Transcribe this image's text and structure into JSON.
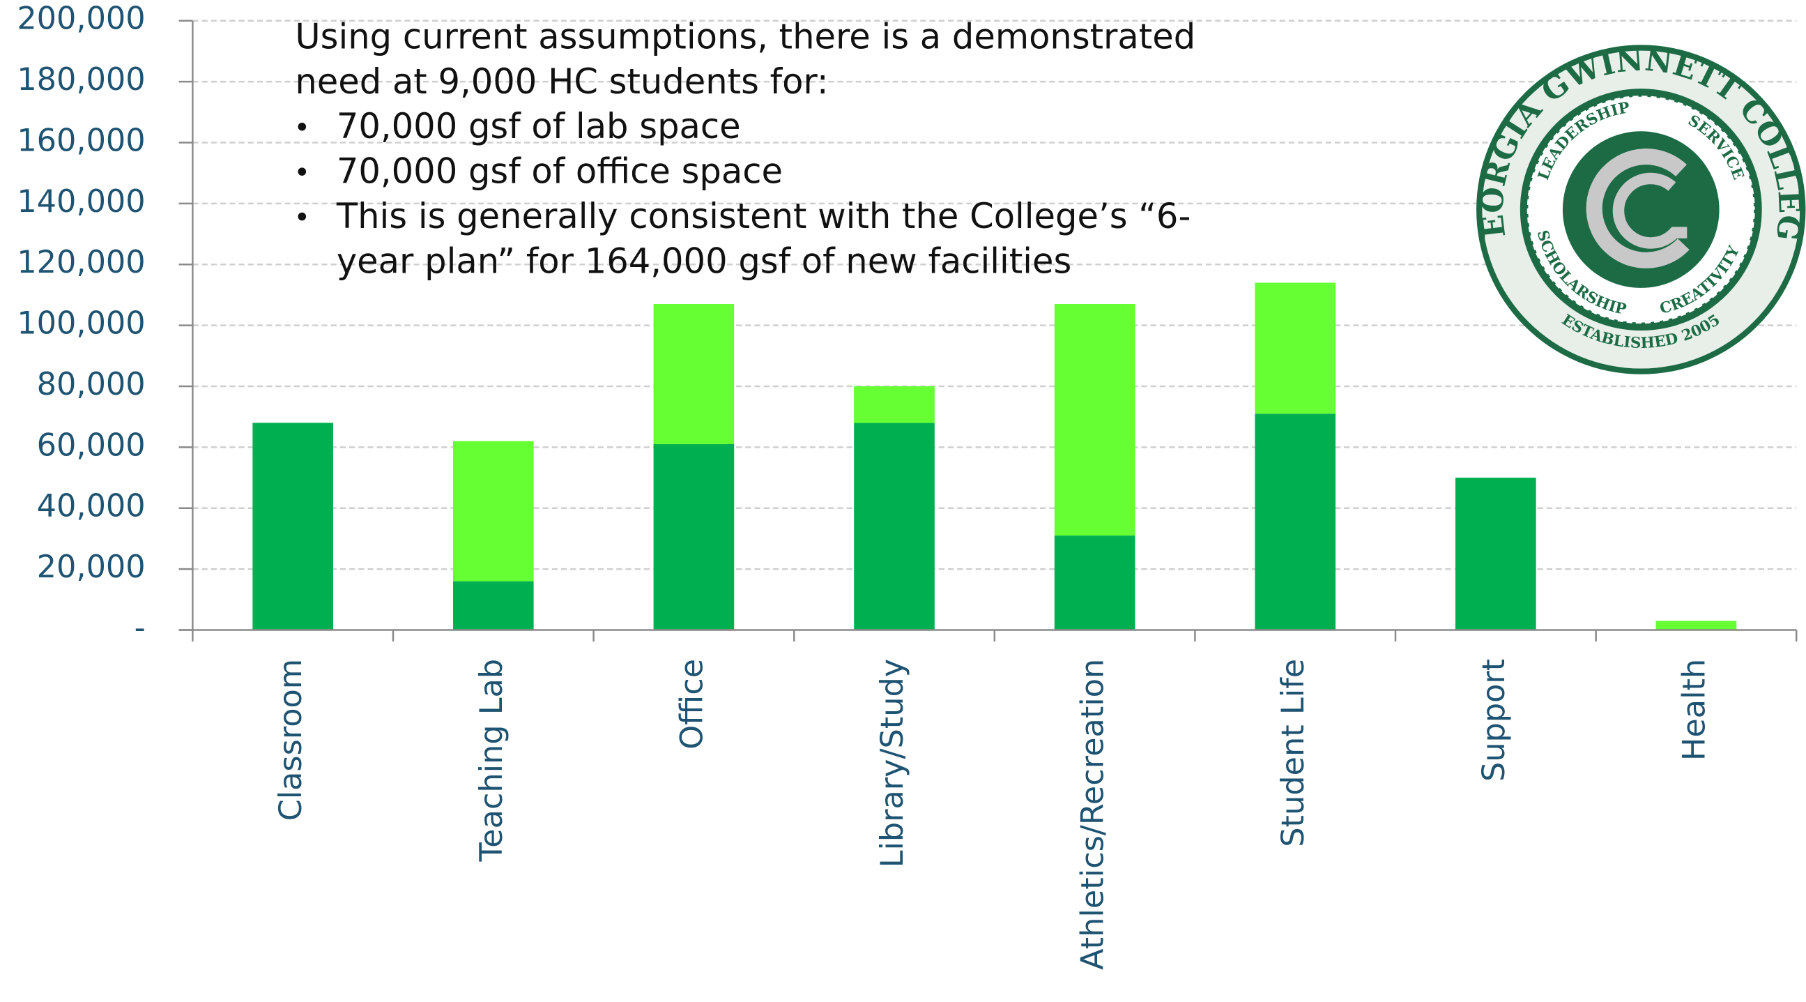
{
  "chart_data": {
    "type": "stacked_bar",
    "categories": [
      "Classroom",
      "Teaching Lab",
      "Office",
      "Library/Study",
      "Athletics/Recreation",
      "Student Life",
      "Support",
      "Health"
    ],
    "series": [
      {
        "color": "#00b050",
        "values": [
          68000,
          16000,
          61000,
          68000,
          31000,
          71000,
          50000,
          0
        ]
      },
      {
        "color": "#66ff33",
        "values": [
          0,
          46000,
          46000,
          12000,
          76000,
          43000,
          0,
          3000
        ]
      }
    ],
    "ylim": [
      0,
      200000
    ],
    "yticks": [
      {
        "value": 0,
        "label": "-"
      },
      {
        "value": 20000,
        "label": "20,000"
      },
      {
        "value": 40000,
        "label": "40,000"
      },
      {
        "value": 60000,
        "label": "60,000"
      },
      {
        "value": 80000,
        "label": "80,000"
      },
      {
        "value": 100000,
        "label": "100,000"
      },
      {
        "value": 120000,
        "label": "120,000"
      },
      {
        "value": 140000,
        "label": "140,000"
      },
      {
        "value": 160000,
        "label": "160,000"
      },
      {
        "value": 180000,
        "label": "180,000"
      },
      {
        "value": 200000,
        "label": "200,000"
      }
    ],
    "grid": true,
    "annotation": {
      "intro": [
        "Using current assumptions, there is a demonstrated",
        "need at 9,000 HC students for:"
      ],
      "bullets": [
        [
          "70,000 gsf of lab space"
        ],
        [
          "70,000 gsf of office space"
        ],
        [
          "This is generally consistent with the College’s “6-",
          "year plan” for 164,000 gsf of new facilities"
        ]
      ]
    }
  },
  "logo": {
    "name": "GEORGIA GWINNETT COLLEGE",
    "top_left": "LEADERSHIP",
    "top_right": "SERVICE",
    "bottom_left": "SCHOLARSHIP",
    "bottom_right": "CREATIVITY",
    "established": "ESTABLISHED 2005"
  }
}
